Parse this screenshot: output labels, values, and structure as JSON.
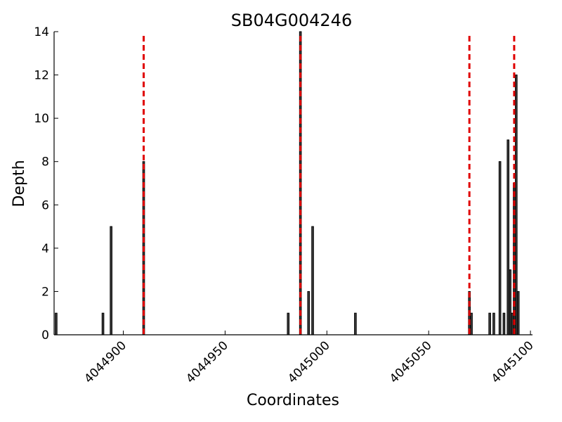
{
  "chart_data": {
    "type": "bar",
    "title": "SB04G004246",
    "xlabel": "Coordinates",
    "ylabel": "Depth",
    "xlim": [
      4044866,
      4045101
    ],
    "ylim": [
      0,
      14
    ],
    "xticks": [
      4044900,
      4044950,
      4045000,
      4045050,
      4045100
    ],
    "yticks": [
      0,
      2,
      4,
      6,
      8,
      10,
      12,
      14
    ],
    "grid": false,
    "bar_color": "#404040",
    "marker_color": "#e00000",
    "markers": [
      4044910,
      4044987,
      4045070,
      4045092
    ],
    "x": [
      4044867,
      4044890,
      4044894,
      4044910,
      4044981,
      4044987,
      4044991,
      4044993,
      4045014,
      4045070,
      4045071,
      4045080,
      4045082,
      4045085,
      4045087,
      4045089,
      4045090,
      4045091,
      4045092,
      4045093,
      4045094
    ],
    "values": [
      1,
      1,
      5,
      8,
      1,
      14,
      2,
      5,
      1,
      2,
      1,
      1,
      1,
      8,
      1,
      9,
      3,
      1,
      7,
      12,
      2
    ]
  }
}
